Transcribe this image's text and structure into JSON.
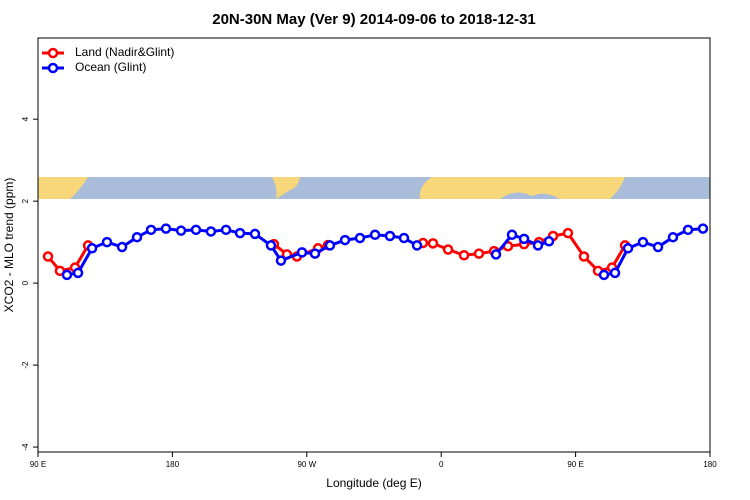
{
  "chart_data": {
    "type": "line",
    "title": "20N-30N May (Ver 9)   2014-09-06 to 2018-12-31",
    "xlabel": "Longitude (deg E)",
    "ylabel": "XCO2 - MLO trend (ppm)",
    "xlim": [
      90,
      540
    ],
    "ylim": [
      -4.12,
      5.98
    ],
    "xticks": [
      {
        "value": 90,
        "label": "90 E"
      },
      180,
      {
        "value": 270,
        "label": "90 W"
      },
      {
        "value": 360,
        "label": "0"
      },
      {
        "value": 450,
        "label": "90 E"
      },
      {
        "value": 540,
        "label": "180"
      }
    ],
    "yticks": [
      -4,
      -2,
      0,
      2,
      4
    ],
    "legend": "top-left",
    "series": [
      {
        "name": "Land (Nadir&Glint)",
        "color": "#ff0000",
        "x": [
          96.7,
          104.7,
          114.8,
          123.5,
          null,
          248.0,
          256.7,
          263.4,
          277.5,
          284.2,
          null,
          347.8,
          354.5,
          364.6,
          375.3,
          385.3,
          395.4,
          404.7,
          415.5,
          425.5,
          434.9,
          444.9,
          455.6,
          465.0,
          474.4,
          483.1
        ],
        "values": [
          0.65,
          0.3,
          0.38,
          0.92,
          null,
          0.95,
          0.7,
          0.65,
          0.85,
          0.93,
          null,
          0.98,
          0.97,
          0.82,
          0.68,
          0.72,
          0.78,
          0.9,
          0.95,
          1.0,
          1.15,
          1.22,
          0.65,
          0.3,
          0.38,
          0.92
        ]
      },
      {
        "name": "Ocean (Glint)",
        "color": "#0000ff",
        "x": [
          109.4,
          116.8,
          126.2,
          136.2,
          146.3,
          156.3,
          165.7,
          175.7,
          185.8,
          195.8,
          205.8,
          215.9,
          225.3,
          235.3,
          246.0,
          252.7,
          266.8,
          275.5,
          285.5,
          295.6,
          305.6,
          315.7,
          325.7,
          335.1,
          343.8,
          null,
          396.7,
          407.4,
          415.5,
          424.8,
          432.2,
          null,
          469.0,
          476.4,
          485.1,
          495.1,
          505.2,
          515.2,
          525.3,
          535.3
        ],
        "values": [
          0.2,
          0.25,
          0.85,
          1.0,
          0.88,
          1.12,
          1.3,
          1.33,
          1.28,
          1.3,
          1.26,
          1.3,
          1.22,
          1.2,
          0.92,
          0.55,
          0.75,
          0.72,
          0.92,
          1.05,
          1.1,
          1.18,
          1.15,
          1.1,
          0.92,
          null,
          0.7,
          1.18,
          1.08,
          0.92,
          1.02,
          null,
          0.2,
          0.25,
          0.85,
          1.0,
          0.88,
          1.12,
          1.3,
          1.33
        ]
      }
    ]
  }
}
